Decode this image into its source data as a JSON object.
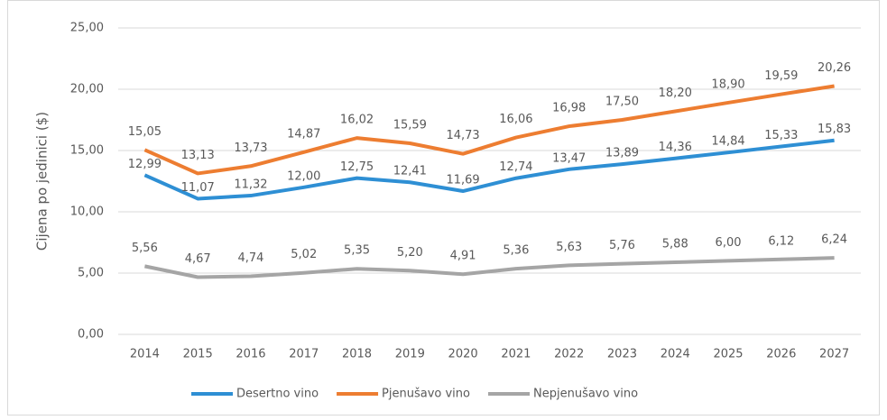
{
  "chart_data": {
    "type": "line",
    "y_label": "Cijena po jedinici ($)",
    "categories": [
      "2014",
      "2015",
      "2016",
      "2017",
      "2018",
      "2019",
      "2020",
      "2021",
      "2022",
      "2023",
      "2024",
      "2025",
      "2026",
      "2027"
    ],
    "series": [
      {
        "name": "Desertno vino",
        "color": "#2e8fd4",
        "values": [
          12.99,
          11.07,
          11.32,
          12.0,
          12.75,
          12.41,
          11.69,
          12.74,
          13.47,
          13.89,
          14.36,
          14.84,
          15.33,
          15.83
        ],
        "value_labels": [
          "12,99",
          "11,07",
          "11,32",
          "12,00",
          "12,75",
          "12,41",
          "11,69",
          "12,74",
          "13,47",
          "13,89",
          "14,36",
          "14,84",
          "15,33",
          "15,83"
        ]
      },
      {
        "name": "Pjenušavo vino",
        "color": "#ed7d31",
        "values": [
          15.05,
          13.13,
          13.73,
          14.87,
          16.02,
          15.59,
          14.73,
          16.06,
          16.98,
          17.5,
          18.2,
          18.9,
          19.59,
          20.26
        ],
        "value_labels": [
          "15,05",
          "13,13",
          "13,73",
          "14,87",
          "16,02",
          "15,59",
          "14,73",
          "16,06",
          "16,98",
          "17,50",
          "18,20",
          "18,90",
          "19,59",
          "20,26"
        ]
      },
      {
        "name": "Nepjenušavo vino",
        "color": "#a5a5a5",
        "values": [
          5.56,
          4.67,
          4.74,
          5.02,
          5.35,
          5.2,
          4.91,
          5.36,
          5.63,
          5.76,
          5.88,
          6.0,
          6.12,
          6.24
        ],
        "value_labels": [
          "5,56",
          "4,67",
          "4,74",
          "5,02",
          "5,35",
          "5,20",
          "4,91",
          "5,36",
          "5,63",
          "5,76",
          "5,88",
          "6,00",
          "6,12",
          "6,24"
        ]
      }
    ],
    "ylim": [
      0,
      25
    ],
    "yticks": [
      {
        "value": 0,
        "label": "0,00"
      },
      {
        "value": 5,
        "label": "5,00"
      },
      {
        "value": 10,
        "label": "10,00"
      },
      {
        "value": 15,
        "label": "15,00"
      },
      {
        "value": 20,
        "label": "20,00"
      },
      {
        "value": 25,
        "label": "25,00"
      }
    ],
    "grid": true,
    "legend": "bottom"
  }
}
